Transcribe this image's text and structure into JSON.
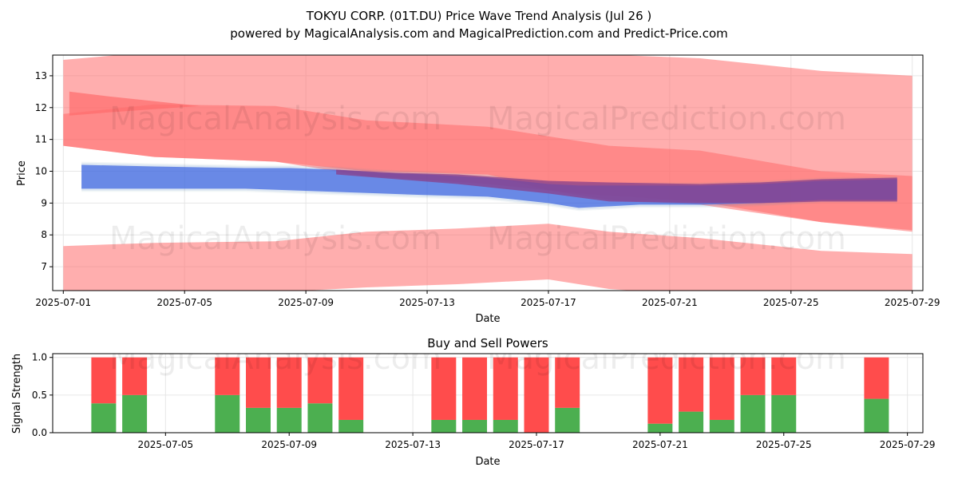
{
  "title_line1": "TOKYU CORP. (01T.DU) Price Wave Trend Analysis (Jul 26 )",
  "title_line2": "powered by MagicalAnalysis.com and MagicalPrediction.com and Predict-Price.com",
  "watermark_left": "MagicalAnalysis.com",
  "watermark_right": "MagicalPrediction.com",
  "colors": {
    "red_band": "#ff6b6b",
    "blue_band": "#4169e1",
    "purple_band": "#8a3f8a",
    "buy": "#4caf50",
    "sell": "#ff4c4c",
    "grid": "#e6e6e6"
  },
  "chart_data": [
    {
      "type": "area",
      "title": "",
      "xlabel": "Date",
      "ylabel": "Price",
      "x_ticks": [
        "2025-07-01",
        "2025-07-05",
        "2025-07-09",
        "2025-07-13",
        "2025-07-17",
        "2025-07-21",
        "2025-07-25",
        "2025-07-29"
      ],
      "y_ticks": [
        7,
        8,
        9,
        10,
        11,
        12,
        13
      ],
      "ylim": [
        6.25,
        13.65
      ],
      "xlim_days": [
        -0.35,
        28.35
      ],
      "grid": true,
      "red_bands": [
        {
          "name": "upper band",
          "days": [
            0,
            3,
            7,
            10,
            14,
            17,
            21,
            25,
            28
          ],
          "upper": [
            13.5,
            13.75,
            13.7,
            13.7,
            13.65,
            13.7,
            13.55,
            13.15,
            13.0
          ],
          "lower": [
            10.8,
            10.45,
            10.3,
            9.85,
            9.6,
            9.3,
            9.05,
            8.4,
            8.1
          ]
        },
        {
          "name": "middle band",
          "days": [
            0,
            3,
            7,
            10,
            14,
            16,
            18,
            21,
            25,
            28
          ],
          "upper": [
            11.8,
            12.1,
            12.05,
            11.6,
            11.4,
            11.1,
            10.8,
            10.65,
            10.0,
            9.85
          ],
          "lower": [
            10.8,
            10.45,
            10.3,
            10.0,
            9.9,
            9.4,
            9.1,
            8.95,
            8.4,
            8.15
          ]
        },
        {
          "name": "lower band",
          "days": [
            0,
            3,
            7,
            10,
            13,
            16,
            18,
            21,
            25,
            28
          ],
          "upper": [
            7.65,
            7.75,
            7.8,
            8.1,
            8.2,
            8.35,
            8.1,
            7.9,
            7.5,
            7.4
          ],
          "lower": [
            6.25,
            6.2,
            6.2,
            6.35,
            6.45,
            6.6,
            6.3,
            6.1,
            6.0,
            6.0
          ]
        }
      ],
      "red_highlight": {
        "name": "red dark band",
        "days": [
          0.2,
          1.5,
          3,
          4.5
        ],
        "upper": [
          12.5,
          12.35,
          12.2,
          12.05
        ],
        "lower": [
          11.75,
          11.85,
          11.95,
          12.05
        ]
      },
      "blue_band": {
        "name": "blue wave band",
        "days": [
          0.6,
          3,
          6,
          7.5,
          9,
          10.5,
          12,
          14,
          16,
          17,
          19,
          21,
          23,
          25,
          27.5
        ],
        "upper": [
          10.2,
          10.15,
          10.1,
          10.1,
          10.05,
          9.95,
          9.9,
          9.8,
          9.6,
          9.55,
          9.55,
          9.55,
          9.6,
          9.7,
          9.75
        ],
        "lower": [
          9.45,
          9.45,
          9.45,
          9.4,
          9.35,
          9.3,
          9.25,
          9.2,
          9.0,
          8.85,
          8.95,
          8.95,
          9.0,
          9.1,
          9.1
        ]
      },
      "purple_band": {
        "name": "purple wave band",
        "days": [
          9,
          11,
          13,
          16,
          18,
          21,
          23,
          25,
          27.5
        ],
        "upper": [
          10.05,
          9.95,
          9.9,
          9.7,
          9.65,
          9.6,
          9.65,
          9.75,
          9.8
        ],
        "lower": [
          9.9,
          9.75,
          9.6,
          9.3,
          9.05,
          9.0,
          9.0,
          9.05,
          9.05
        ]
      }
    },
    {
      "type": "bar",
      "title": "Buy and Sell Powers",
      "xlabel": "Date",
      "ylabel": "Signal Strength",
      "x_ticks": [
        "2025-07-05",
        "2025-07-09",
        "2025-07-13",
        "2025-07-17",
        "2025-07-21",
        "2025-07-25",
        "2025-07-29"
      ],
      "y_ticks": [
        "0.0",
        "0.5",
        "1.0"
      ],
      "ylim": [
        0,
        1.05
      ],
      "xlim_days": [
        0.35,
        28.5
      ],
      "grid": true,
      "series": [
        {
          "name": "buy",
          "days": [
            2,
            3,
            6,
            7,
            8,
            9,
            10,
            13,
            14,
            15,
            16,
            17,
            20,
            21,
            22,
            23,
            24,
            27
          ],
          "values": [
            0.39,
            0.5,
            0.5,
            0.33,
            0.33,
            0.39,
            0.17,
            0.17,
            0.17,
            0.17,
            0.0,
            0.33,
            0.12,
            0.28,
            0.17,
            0.5,
            0.5,
            0.45
          ]
        },
        {
          "name": "sell",
          "days": [
            2,
            3,
            6,
            7,
            8,
            9,
            10,
            13,
            14,
            15,
            16,
            17,
            20,
            21,
            22,
            23,
            24,
            27
          ],
          "values": [
            0.61,
            0.5,
            0.5,
            0.67,
            0.67,
            0.61,
            0.83,
            0.83,
            0.83,
            0.83,
            1.0,
            0.67,
            0.88,
            0.72,
            0.83,
            0.5,
            0.5,
            0.55
          ]
        }
      ]
    }
  ]
}
